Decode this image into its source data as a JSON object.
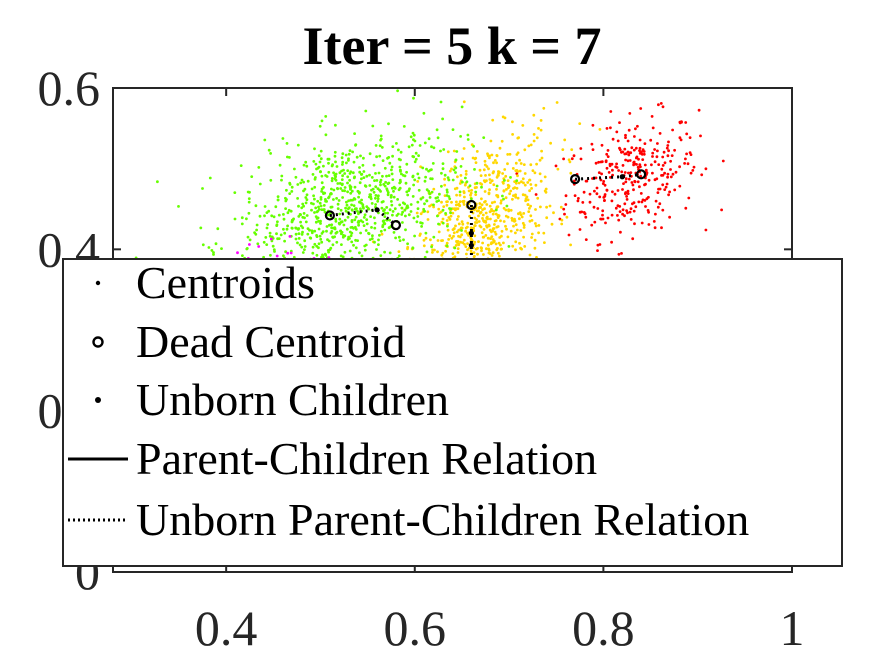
{
  "chart_data": {
    "type": "scatter",
    "title": "Iter = 5  k = 7",
    "xlabel": "",
    "ylabel": "",
    "xlim": [
      0.28,
      1.0
    ],
    "ylim": [
      0.0,
      0.6
    ],
    "xticks": [
      0.4,
      0.6,
      0.8,
      1.0
    ],
    "xtick_labels": [
      "0.4",
      "0.6",
      "0.8",
      "1"
    ],
    "yticks": [
      0.0,
      0.2,
      0.4,
      0.6
    ],
    "ytick_labels": [
      "0",
      "0.2",
      "0.4",
      "0.6"
    ],
    "grid": false,
    "legend_position": "bottom",
    "clusters": [
      {
        "color": "#ff0000",
        "center": [
          0.83,
          0.49
        ],
        "spread": [
          0.035,
          0.035
        ],
        "count": 320,
        "tilt": 0.3
      },
      {
        "color": "#ffd700",
        "center": [
          0.67,
          0.43
        ],
        "spread": [
          0.04,
          0.05
        ],
        "count": 700,
        "tilt": 0.5
      },
      {
        "color": "#66ff00",
        "center": [
          0.53,
          0.45
        ],
        "spread": [
          0.06,
          0.045
        ],
        "count": 900,
        "tilt": 0.4
      },
      {
        "color": "#ff00ff",
        "center": [
          0.43,
          0.38
        ],
        "spread": [
          0.03,
          0.02
        ],
        "count": 40,
        "tilt": 0.2
      }
    ],
    "centroid_paths": [
      {
        "style": "dotted",
        "points": [
          [
            0.77,
            0.487
          ],
          [
            0.82,
            0.49
          ],
          [
            0.84,
            0.493
          ]
        ]
      },
      {
        "style": "dotted",
        "points": [
          [
            0.51,
            0.442
          ],
          [
            0.56,
            0.449
          ],
          [
            0.58,
            0.43
          ]
        ]
      },
      {
        "style": "dotted",
        "points": [
          [
            0.66,
            0.455
          ],
          [
            0.66,
            0.42
          ],
          [
            0.66,
            0.405
          ],
          [
            0.66,
            0.36
          ]
        ]
      }
    ],
    "legend": {
      "entries": [
        {
          "label": "Centroids",
          "marker": "dot"
        },
        {
          "label": "Dead Centroid",
          "marker": "circle"
        },
        {
          "label": "Unborn Children",
          "marker": "small-dot"
        },
        {
          "label": "Parent-Children Relation",
          "marker": "solid-line"
        },
        {
          "label": "Unborn Parent-Children Relation",
          "marker": "dotted-line"
        }
      ]
    }
  }
}
